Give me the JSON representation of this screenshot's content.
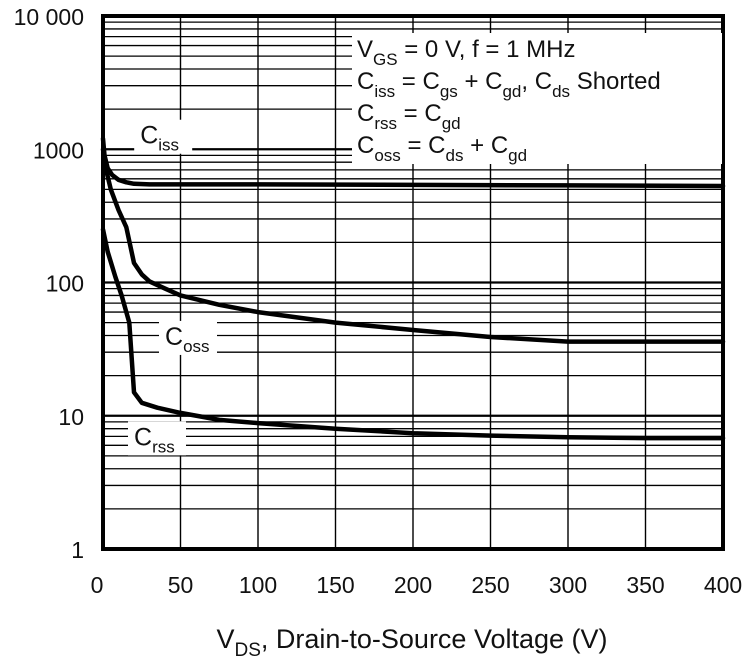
{
  "chart_data": {
    "type": "line",
    "title": "",
    "xlabel": {
      "main": "V",
      "sub": "DS",
      "rest": ", Drain-to-Source Voltage (V)"
    },
    "ylabel": "",
    "xlim": [
      0,
      400
    ],
    "ylim": [
      1,
      10000
    ],
    "yscale": "log",
    "grid": true,
    "x_ticks": [
      0,
      50,
      100,
      150,
      200,
      250,
      300,
      350,
      400
    ],
    "x_tick_labels": [
      "0",
      "50",
      "100",
      "150",
      "200",
      "250",
      "300",
      "350",
      "400"
    ],
    "y_ticks": [
      1,
      10,
      100,
      1000,
      10000
    ],
    "y_tick_labels": [
      "1",
      "10",
      "100",
      "1000",
      "10 000"
    ],
    "legend": {
      "placement": "top-right",
      "lines": [
        [
          {
            "t": "V"
          },
          {
            "t": "GS",
            "sub": true
          },
          {
            "t": " = 0 V, f = 1 MHz"
          }
        ],
        [
          {
            "t": "C"
          },
          {
            "t": "iss",
            "sub": true
          },
          {
            "t": " = C"
          },
          {
            "t": "gs",
            "sub": true
          },
          {
            "t": " + C"
          },
          {
            "t": "gd",
            "sub": true
          },
          {
            "t": ", C"
          },
          {
            "t": "ds",
            "sub": true
          },
          {
            "t": " Shorted"
          }
        ],
        [
          {
            "t": "C"
          },
          {
            "t": "rss",
            "sub": true
          },
          {
            "t": " = C"
          },
          {
            "t": "gd",
            "sub": true
          }
        ],
        [
          {
            "t": "C"
          },
          {
            "t": "oss",
            "sub": true
          },
          {
            "t": " = C"
          },
          {
            "t": "ds",
            "sub": true
          },
          {
            "t": " + C"
          },
          {
            "t": "gd",
            "sub": true
          }
        ]
      ]
    },
    "series": [
      {
        "name": "Ciss",
        "label_main": "C",
        "label_sub": "iss",
        "label_at": {
          "x": 24,
          "y": 1100
        },
        "x": [
          0,
          1,
          3,
          6,
          10,
          15,
          20,
          30,
          50,
          100,
          200,
          300,
          400
        ],
        "y": [
          1200,
          900,
          720,
          640,
          590,
          565,
          550,
          545,
          545,
          545,
          540,
          535,
          530
        ]
      },
      {
        "name": "Coss",
        "label_main": "C",
        "label_sub": "oss",
        "label_at": {
          "x": 40,
          "y": 34
        },
        "x": [
          0,
          2,
          5,
          10,
          15,
          20,
          25,
          30,
          40,
          50,
          75,
          100,
          150,
          200,
          250,
          300,
          350,
          400
        ],
        "y": [
          1000,
          700,
          500,
          350,
          260,
          140,
          115,
          102,
          90,
          80,
          68,
          60,
          50,
          44,
          39,
          36,
          36,
          36
        ]
      },
      {
        "name": "Crss",
        "label_main": "C",
        "label_sub": "rss",
        "label_at": {
          "x": 20,
          "y": 6
        },
        "x": [
          0,
          3,
          8,
          12,
          17,
          20,
          25,
          35,
          50,
          75,
          100,
          150,
          200,
          250,
          300,
          350,
          400
        ],
        "y": [
          250,
          170,
          110,
          80,
          50,
          15,
          12.5,
          11.5,
          10.5,
          9.3,
          8.8,
          8.0,
          7.4,
          7.1,
          6.9,
          6.8,
          6.8
        ]
      }
    ]
  },
  "colors": {
    "line": "#000000",
    "grid": "#000000",
    "background": "#ffffff"
  }
}
